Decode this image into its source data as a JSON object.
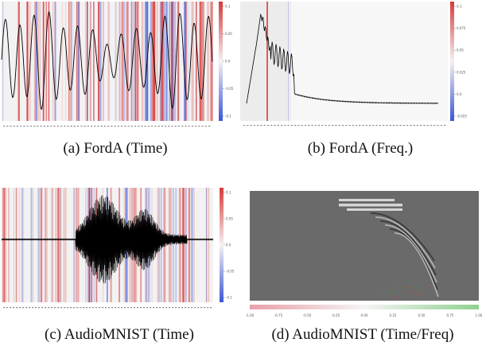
{
  "figure": {
    "panels": [
      {
        "id": "a",
        "caption": "(a) FordA (Time)",
        "colorbar_ticks": [
          "0.1",
          "0.05",
          "0.0",
          "-0.05",
          "-0.1"
        ]
      },
      {
        "id": "b",
        "caption": "(b) FordA (Freq.)",
        "colorbar_ticks": [
          "0.1",
          "0.075",
          "0.05",
          "0.025",
          "0.0",
          "-0.025"
        ]
      },
      {
        "id": "c",
        "caption": "(c) AudioMNIST (Time)",
        "colorbar_ticks": [
          "0.1",
          "0.05",
          "0.0",
          "-0.05",
          "-0.1"
        ]
      },
      {
        "id": "d",
        "caption": "(d) AudioMNIST (Time/Freq)",
        "colorbar_ticks": [
          "-1.00",
          "-0.75",
          "-0.50",
          "-0.25",
          "0.00",
          "0.25",
          "0.50",
          "0.75",
          "1.00"
        ]
      }
    ],
    "colors": {
      "positive": "#d63a3a",
      "negative": "#3a56d6",
      "heatmap_bg": "#6a6a6a",
      "colorbar_left": "#e8a0a8",
      "colorbar_right": "#8fd08f"
    }
  }
}
